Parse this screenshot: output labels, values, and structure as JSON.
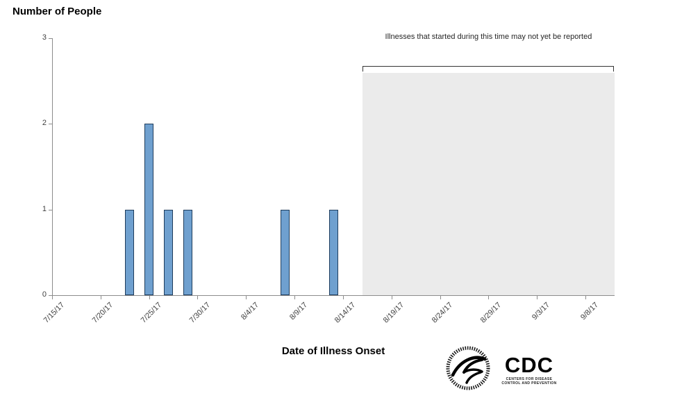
{
  "chart_data": {
    "type": "bar",
    "title": "Number of People",
    "xlabel": "Date of Illness Onset",
    "ylabel": "Number of People",
    "ylim": [
      0,
      3
    ],
    "yticks": [
      0,
      1,
      2,
      3
    ],
    "x_axis_start": "7/15/17",
    "days_total": 58,
    "grid": false,
    "legend": "none",
    "xticks": [
      {
        "label": "7/15/17",
        "day": 0
      },
      {
        "label": "7/20/17",
        "day": 5
      },
      {
        "label": "7/25/17",
        "day": 10
      },
      {
        "label": "7/30/17",
        "day": 15
      },
      {
        "label": "8/4/17",
        "day": 20
      },
      {
        "label": "8/9/17",
        "day": 25
      },
      {
        "label": "8/14/17",
        "day": 30
      },
      {
        "label": "8/19/17",
        "day": 35
      },
      {
        "label": "8/24/17",
        "day": 40
      },
      {
        "label": "8/29/17",
        "day": 45
      },
      {
        "label": "9/3/17",
        "day": 50
      },
      {
        "label": "9/8/17",
        "day": 55
      }
    ],
    "bars": [
      {
        "date": "7/23/17",
        "day": 8,
        "value": 1
      },
      {
        "date": "7/25/17",
        "day": 10,
        "value": 2
      },
      {
        "date": "7/27/17",
        "day": 12,
        "value": 1
      },
      {
        "date": "7/29/17",
        "day": 14,
        "value": 1
      },
      {
        "date": "8/8/17",
        "day": 24,
        "value": 1
      },
      {
        "date": "8/13/17",
        "day": 29,
        "value": 1
      }
    ],
    "not_yet_reported": {
      "label": "Illnesses that started during this time may not yet be reported",
      "start_day": 32,
      "end_day": 58
    },
    "colors": {
      "bar_fill": "#6fa0cf",
      "bar_border": "#1e3c5c",
      "shade": "#ebebeb",
      "axis": "#8c8c8c",
      "text": "#3f3f3f"
    }
  },
  "footer": {
    "cdc_logo_text": "CDC",
    "cdc_logo_caption_line1": "CENTERS FOR DISEASE",
    "cdc_logo_caption_line2": "CONTROL AND PREVENTION",
    "hhs_logo_ring_text": "DEPARTMENT OF HEALTH & HUMAN SERVICES • USA"
  }
}
